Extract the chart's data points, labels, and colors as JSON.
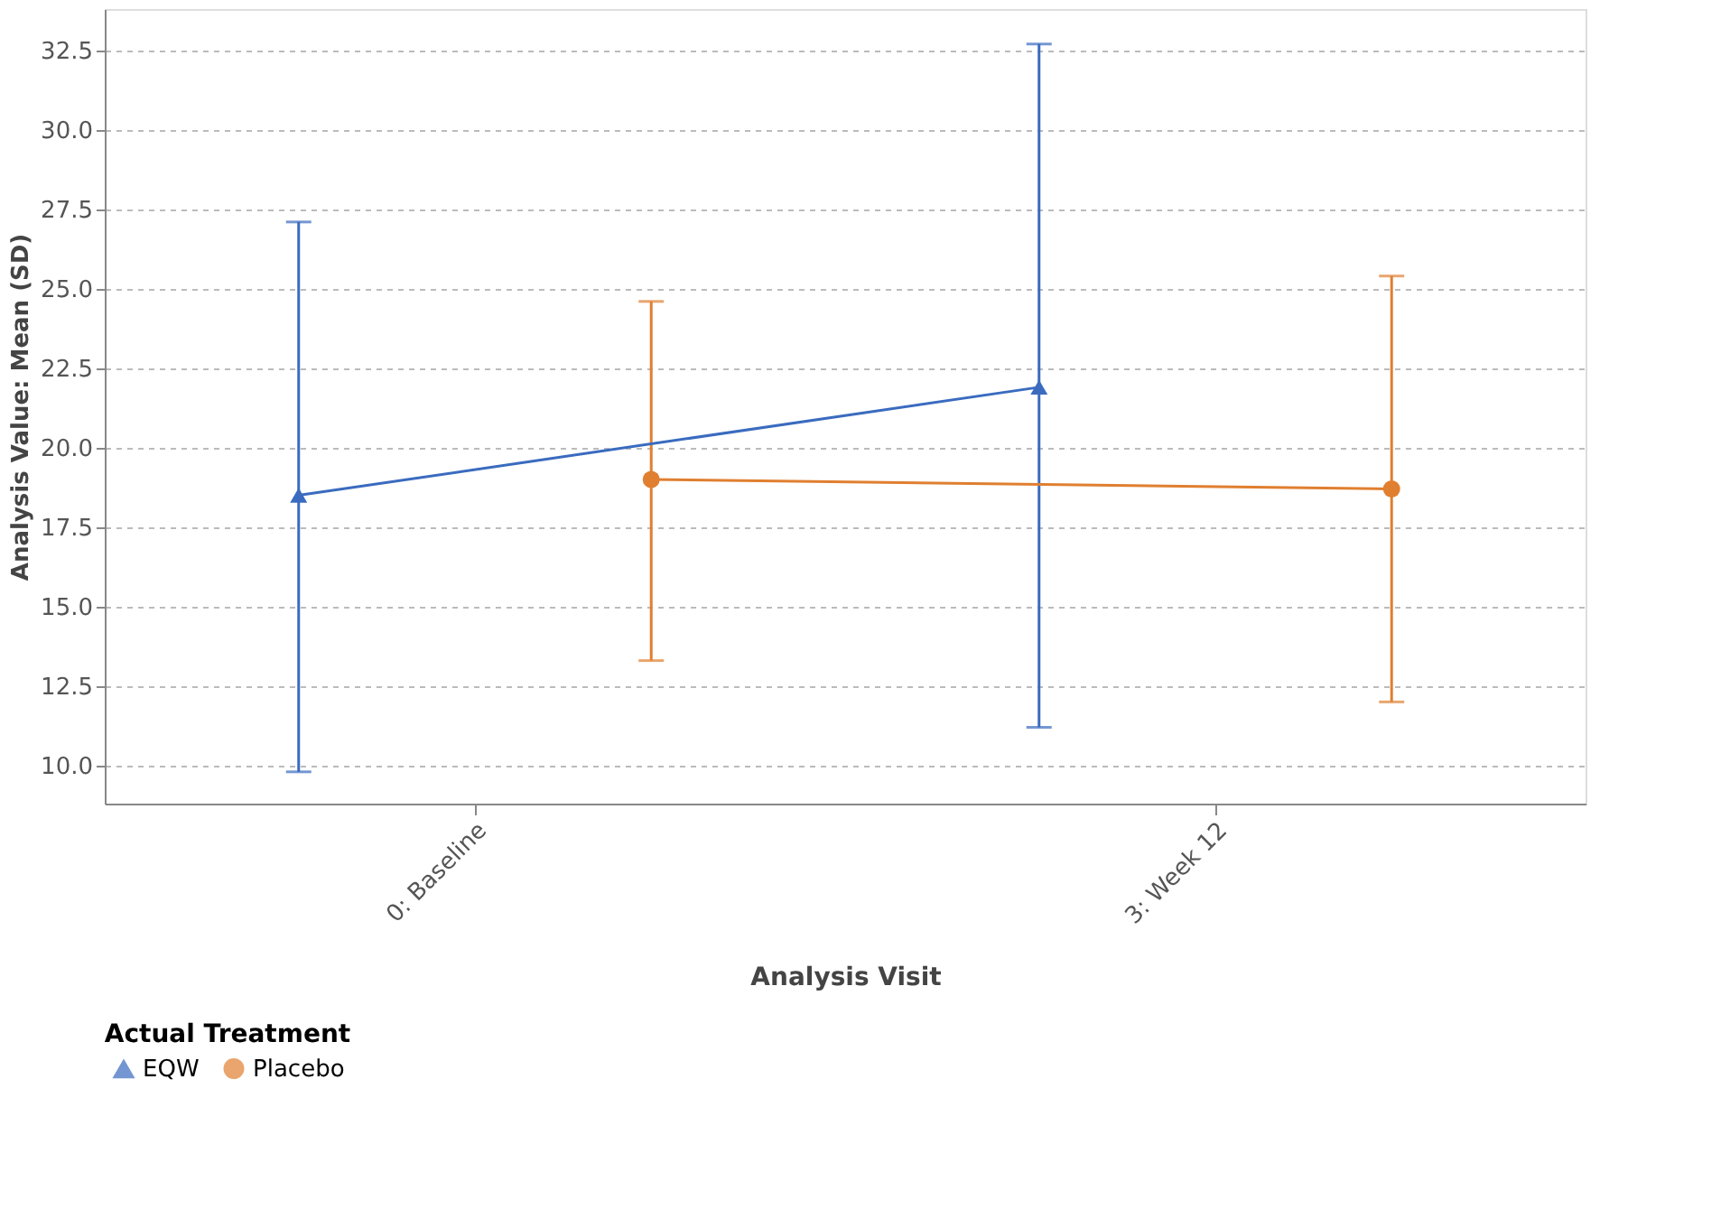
{
  "chart_data": {
    "type": "line",
    "xlabel": "Analysis Visit",
    "ylabel": "Analysis Value:  Mean (SD)",
    "legend_title": "Actual Treatment",
    "categories": [
      "0: Baseline",
      "3: Week 12"
    ],
    "series": [
      {
        "name": "EQW",
        "color": "#3a6bbf",
        "marker": "triangle",
        "values": [
          18.5,
          21.9
        ],
        "errors": [
          [
            9.8,
            27.1
          ],
          [
            11.2,
            32.7
          ]
        ]
      },
      {
        "name": "Placebo",
        "color": "#e07f30",
        "marker": "circle",
        "values": [
          19.0,
          18.7
        ],
        "errors": [
          [
            13.3,
            24.6
          ],
          [
            12.0,
            25.4
          ]
        ]
      }
    ],
    "ylim": [
      8.8,
      33.8
    ],
    "yticks": [
      {
        "value": 10,
        "label": "10.0"
      },
      12.5,
      {
        "value": 15,
        "label": "15.0"
      },
      17.5,
      {
        "value": 20,
        "label": "20.0"
      },
      22.5,
      {
        "value": 25,
        "label": "25.0"
      },
      27.5,
      {
        "value": 30,
        "label": "30.0"
      },
      32.5
    ],
    "grid": "y",
    "legend": "bottom",
    "line_style": "solid"
  }
}
